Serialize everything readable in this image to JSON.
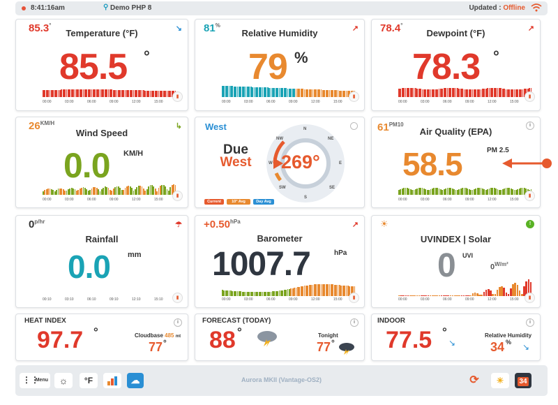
{
  "topbar": {
    "time": "8:41:16am",
    "station": "Demo PHP 8",
    "updated_label": "Updated : ",
    "status": "Offline"
  },
  "temperature": {
    "small_value": "85.3",
    "small_unit": "°",
    "title": "Temperature (°F)",
    "value": "85.5",
    "deg": "°",
    "color": "#e0392b"
  },
  "humidity": {
    "small_value": "81",
    "small_unit": "%",
    "title": "Relative Humidity",
    "value": "79",
    "unit": "%",
    "color": "#e8892f"
  },
  "dewpoint": {
    "small_value": "78.4",
    "small_unit": "°",
    "title": "Dewpoint (°F)",
    "value": "78.3",
    "deg": "°",
    "color": "#e0392b"
  },
  "wind": {
    "small_value": "26",
    "small_unit": "KM/H",
    "title": "Wind Speed",
    "value": "0.0",
    "unit": "KM/H",
    "color": "#7aa41f"
  },
  "direction": {
    "label": "West",
    "due_line1": "Due",
    "due_line2": "West",
    "degrees": "269°",
    "compass": [
      "N",
      "NE",
      "E",
      "SE",
      "S",
      "SW",
      "W",
      "NW"
    ],
    "legend": [
      "Current",
      "10° Avg",
      "Day Avg"
    ]
  },
  "aqi": {
    "small_value": "61",
    "small_unit": "PM10",
    "title": "Air Quality (EPA)",
    "value": "58.5",
    "unit": "PM 2.5",
    "color": "#e8892f"
  },
  "rain": {
    "small_value": "0",
    "small_unit": "p/hr",
    "title": "Rainfall",
    "value": "0.0",
    "unit": "mm",
    "color": "#1aa3b5"
  },
  "barometer": {
    "small_value": "+0.50",
    "small_unit": "hPa",
    "title": "Barometer",
    "value": "1007.7",
    "unit": "hPa",
    "color": "#2f3640"
  },
  "uv": {
    "title": "UVINDEX | Solar",
    "value": "0",
    "unit": "UVI",
    "solar_value": "0",
    "solar_unit": "W/m²",
    "color": "#8a8f94"
  },
  "heat_index": {
    "title": "HEAT INDEX",
    "value": "97.7",
    "deg": "°",
    "cloudbase_label": "Cloudbase",
    "cloudbase_value": "485",
    "cloudbase_unit": "mt",
    "cloudbase_temp": "77",
    "cloudbase_deg": "°"
  },
  "forecast": {
    "title": "FORECAST (TODAY)",
    "value": "88",
    "deg": "°",
    "tonight_label": "Tonight",
    "tonight_value": "77",
    "tonight_deg": "°"
  },
  "indoor": {
    "title": "INDOOR",
    "value": "77.5",
    "deg": "°",
    "humidity_label": "Relative Humidity",
    "humidity_value": "34",
    "humidity_unit": "%"
  },
  "chart_ticks_6": [
    "00:00",
    "03:00",
    "06:00",
    "09:00",
    "12:00",
    "15:00"
  ],
  "chart_ticks_rain": [
    "00:10",
    "03:10",
    "06:10",
    "09:10",
    "12:10",
    "15:10"
  ],
  "footer": {
    "menu_label": "Menu",
    "unit_label": "°F",
    "station_model": "Aurora MKII (Vantage-OS2)",
    "badge_day": "34"
  }
}
